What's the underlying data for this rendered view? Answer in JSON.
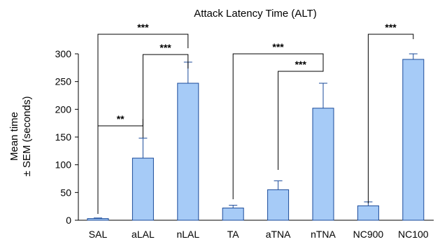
{
  "chart_data": {
    "type": "bar",
    "title": "Attack Latency Time (ALT)",
    "ylabel_line1": "Mean time",
    "ylabel_line2": "± SEM (seconds)",
    "xlabel": "",
    "ylim": [
      0,
      300
    ],
    "yticks": [
      0,
      50,
      100,
      150,
      200,
      250,
      300
    ],
    "categories": [
      "SAL",
      "aLAL",
      "nLAL",
      "TA",
      "aTNA",
      "nTNA",
      "NC900",
      "NC100"
    ],
    "category_colors": [
      "#e8191a",
      "#000000",
      "#000000",
      "#e8191a",
      "#000000",
      "#000000",
      "#e8191a",
      "#000000"
    ],
    "values": [
      3,
      112,
      247,
      22,
      55,
      202,
      26,
      290
    ],
    "errors": [
      1,
      36,
      38,
      5,
      16,
      45,
      7,
      10
    ],
    "bar_color": "#a6cbf7",
    "bar_edge": "#1a4a99",
    "grid": false,
    "significance": [
      {
        "from": 1,
        "to": 2,
        "label": "***"
      },
      {
        "from": 0,
        "to": 2,
        "label": "***"
      },
      {
        "from": 0,
        "to": 1,
        "label": "**"
      },
      {
        "from": 4,
        "to": 5,
        "label": "***"
      },
      {
        "from": 3,
        "to": 5,
        "label": "***"
      },
      {
        "from": 6,
        "to": 7,
        "label": "***"
      }
    ]
  }
}
